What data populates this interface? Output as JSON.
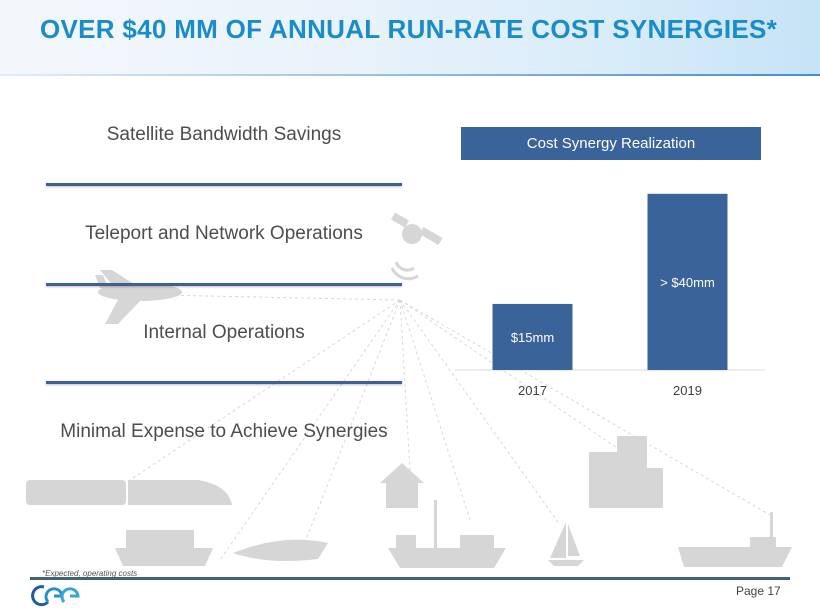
{
  "slide": {
    "title": "OVER $40 MM OF ANNUAL RUN-RATE COST SYNERGIES*",
    "left_items": [
      "Satellite Bandwidth Savings",
      "Teleport and Network Operations",
      "Internal Operations",
      "Minimal Expense to Achieve Synergies"
    ],
    "footnote": "*Expected, operating costs",
    "page": "Page 17",
    "logo": "gee-logo",
    "background_icons": [
      "satellite-icon",
      "airplane-icon",
      "train-icon",
      "house-icon",
      "office-building-icon",
      "cruise-ship-icon",
      "yacht-icon",
      "cargo-ship-icon",
      "sailboat-icon",
      "tanker-ship-icon"
    ]
  },
  "colors": {
    "title": "#1a8cc7",
    "bar": "#3a6399",
    "divider": "#3d6192",
    "footer_line": "#3f6478",
    "icon_gray": "#d6d6d6"
  },
  "chart_data": {
    "type": "bar",
    "title": "Cost Synergy Realization",
    "categories": [
      "2017",
      "2019"
    ],
    "values": [
      15,
      40
    ],
    "data_labels": [
      "$15mm",
      "> $40mm"
    ],
    "xlabel": "",
    "ylabel": "",
    "ylim": [
      0,
      42
    ],
    "grid": false,
    "legend": "none",
    "unit": "$mm"
  }
}
